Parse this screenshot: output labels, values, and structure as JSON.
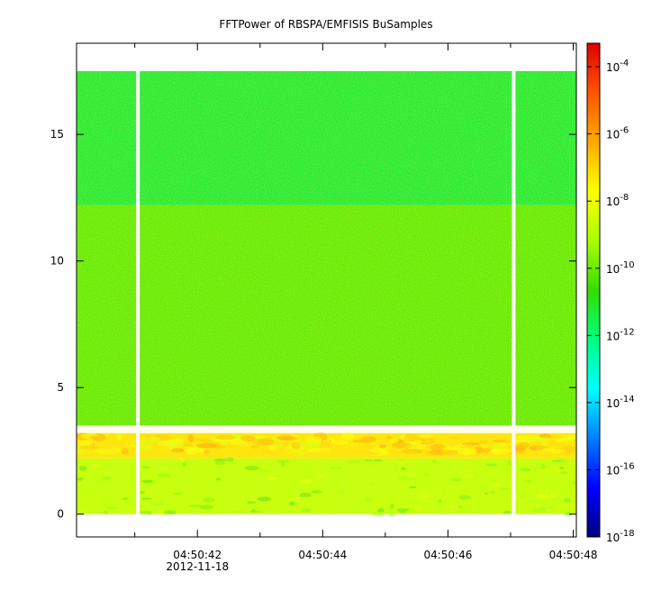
{
  "chart_data": {
    "type": "heatmap",
    "title": "FFTPower of RBSPA/EMFISIS  BuSamples",
    "xlabel": "",
    "ylabel": "",
    "x": {
      "ticks": [
        {
          "t": 42,
          "label": "04:50:42",
          "sublabel": "2012-11-18"
        },
        {
          "t": 44,
          "label": "04:50:44"
        },
        {
          "t": 46,
          "label": "04:50:46"
        },
        {
          "t": 48,
          "label": "04:50:48"
        }
      ],
      "minor_ticks": [
        41,
        43,
        45,
        47
      ],
      "range": [
        40.07,
        48.05
      ]
    },
    "y": {
      "ticks": [
        0,
        5,
        10,
        15
      ],
      "range": [
        -0.9,
        18.6
      ],
      "data_range": [
        0,
        17.5
      ]
    },
    "colorbar": {
      "scale": "log",
      "range_exp": [
        -18,
        -3.3
      ],
      "tick_exps": [
        -4,
        -6,
        -8,
        -10,
        -12,
        -14,
        -16,
        -18
      ],
      "tick_base": "10",
      "colormap": [
        "#00007f",
        "#0000ff",
        "#007fff",
        "#00ffff",
        "#00ff7f",
        "#33dd00",
        "#aaff00",
        "#ffff00",
        "#ffaa00",
        "#ff5500",
        "#e00000"
      ]
    },
    "data_gaps_t": [
      41.05,
      47.05
    ],
    "spectrum_bands": [
      {
        "f": [
          12.2,
          17.5
        ],
        "log_power": -11.2,
        "note": "cyan-green background"
      },
      {
        "f": [
          3.5,
          12.2
        ],
        "log_power": -10.1
      },
      {
        "f": [
          2.2,
          3.2
        ],
        "log_power": -7.2,
        "note": "intense emission band"
      },
      {
        "f": [
          0.0,
          2.2
        ],
        "log_power": -8.8
      }
    ]
  }
}
